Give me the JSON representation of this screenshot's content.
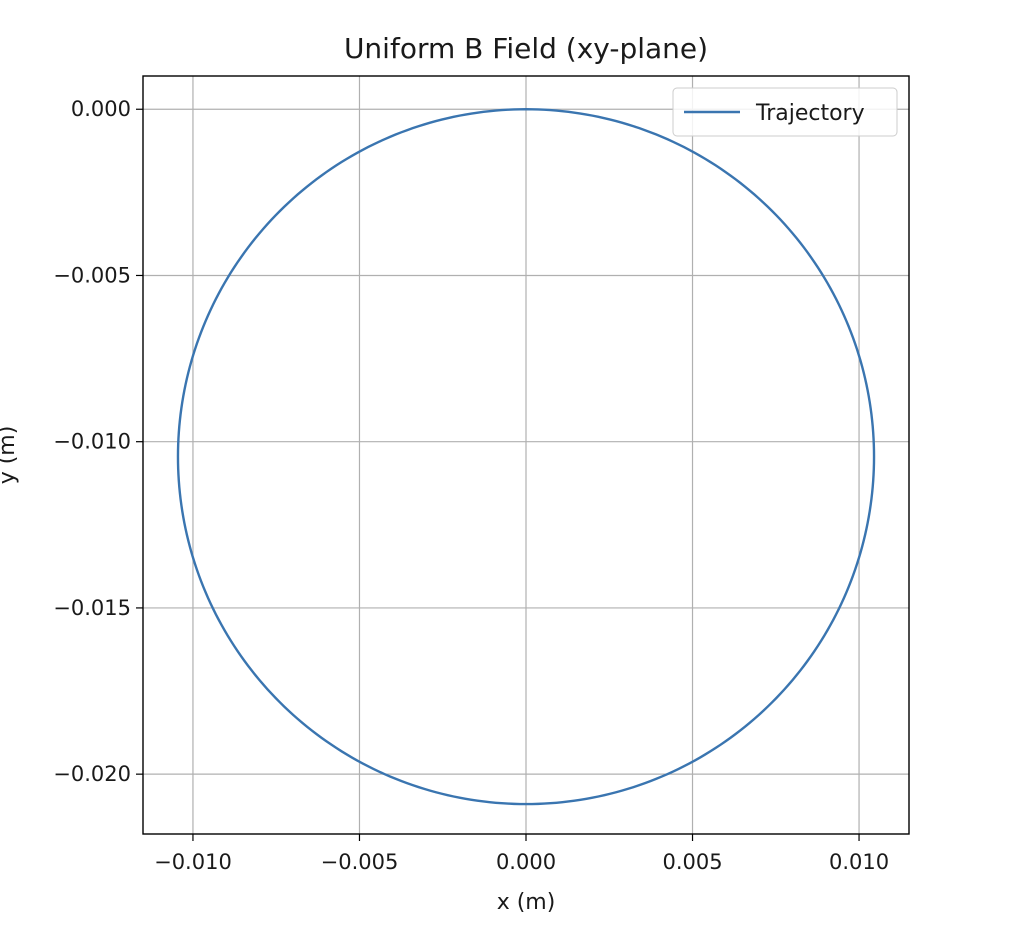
{
  "chart_data": {
    "type": "line",
    "title": "Uniform B Field (xy-plane)",
    "xlabel": "x (m)",
    "ylabel": "y (m)",
    "xlim": [
      -0.0115,
      0.0115
    ],
    "ylim": [
      -0.0218,
      0.001
    ],
    "grid": true,
    "legend_position": "top-right",
    "xticks": [
      -0.01,
      -0.005,
      0.0,
      0.005,
      0.01
    ],
    "xtick_labels": [
      "−0.010",
      "−0.005",
      "0.000",
      "0.005",
      "0.010"
    ],
    "yticks": [
      0.0,
      -0.005,
      -0.01,
      -0.015,
      -0.02
    ],
    "ytick_labels": [
      "0.000",
      "−0.005",
      "−0.010",
      "−0.015",
      "−0.020"
    ],
    "series": [
      {
        "name": "Trajectory",
        "color": "#3a75b0",
        "shape": "circle",
        "center": [
          0.0,
          -0.01045
        ],
        "radius": 0.01045
      }
    ]
  }
}
